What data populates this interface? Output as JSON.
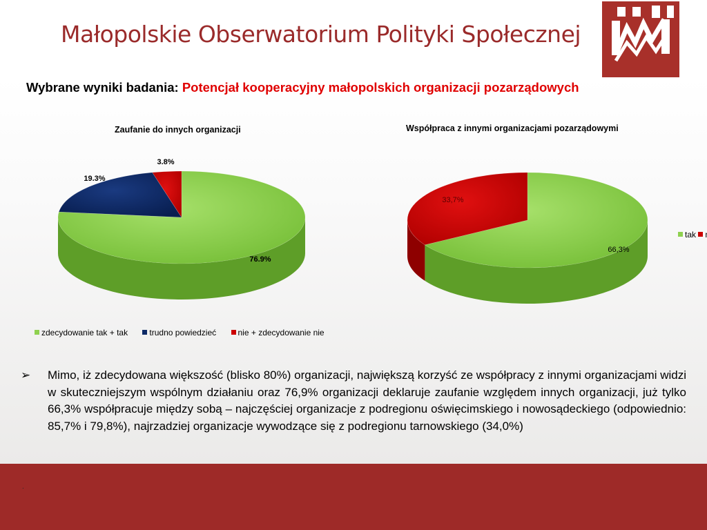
{
  "header": {
    "org_title": "Małopolskie Obserwatorium Polityki Społecznej",
    "logo_icon": "mops-logo-icon"
  },
  "subtitle": {
    "lead": "Wybrane wyniki badania:",
    "accent": "Potencjał kooperacyjny małopolskich organizacji pozarządowych"
  },
  "chart_data": [
    {
      "type": "pie",
      "title": "Zaufanie do innych organizacji",
      "categories": [
        "zdecydowanie tak + tak",
        "trudno powiedzieć",
        "nie + zdecydowanie nie"
      ],
      "values": [
        76.9,
        19.3,
        3.8
      ],
      "data_labels": [
        "76.9%",
        "19.3%",
        "3.8%"
      ],
      "colors": [
        "#8fd14f",
        "#0d2a66",
        "#cc0000"
      ],
      "legend_position": "bottom"
    },
    {
      "type": "pie",
      "title": "Współpraca z innymi organizacjami pozarządowymi",
      "categories": [
        "tak",
        "nie"
      ],
      "values": [
        66.3,
        33.7
      ],
      "data_labels": [
        "66,3%",
        "33,7%"
      ],
      "colors": [
        "#8fd14f",
        "#cc0000"
      ],
      "legend_position": "right"
    }
  ],
  "bullet": {
    "icon": "arrow-bullet-icon",
    "text": "Mimo, iż zdecydowana większość (blisko 80%) organizacji, największą korzyść ze współpracy z innymi organizacjami widzi w skuteczniejszym wspólnym działaniu oraz 76,9% organizacji deklaruje zaufanie względem innych organizacji, już tylko 66,3% współpracuje między sobą – najczęściej organizacje z podregionu oświęcimskiego i nowosądeckiego (odpowiednio: 85,7% i 79,8%), najrzadziej organizacje wywodzące się z podregionu tarnowskiego (34,0%)"
  },
  "footer": {
    "mark": "."
  }
}
